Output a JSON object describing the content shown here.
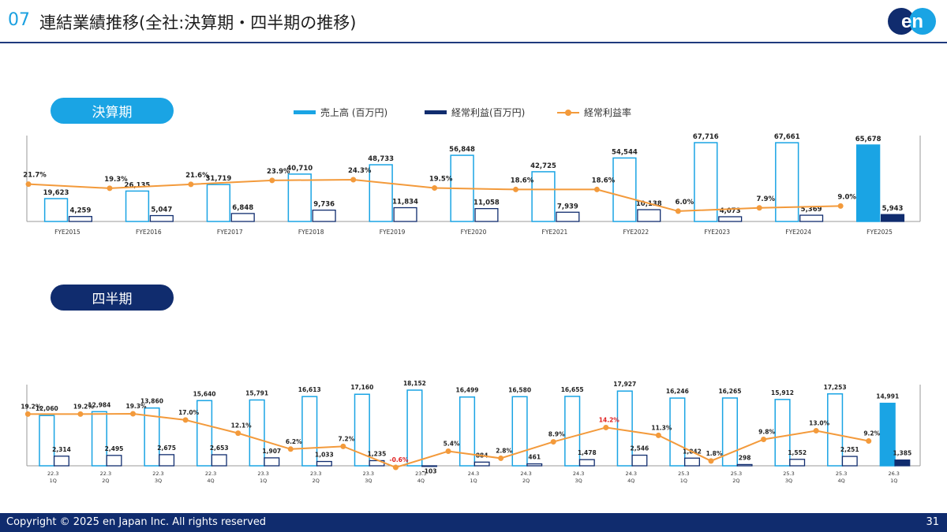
{
  "header": {
    "number": "07",
    "title": "連結業績推移(全社:決算期・四半期の推移)"
  },
  "logo": {
    "text": "en"
  },
  "sections": {
    "annual": "決算期",
    "quarterly": "四半期"
  },
  "legend": {
    "sales": "売上高 (百万円)",
    "ordinary_profit": "経常利益(百万円)",
    "margin": "経常利益率"
  },
  "colors": {
    "sales": "#1aa4e4",
    "profit": "#102c6e",
    "margin": "#f39a3b",
    "negative": "#e02020"
  },
  "chart_data": [
    {
      "type": "bar",
      "name": "決算期",
      "categories": [
        "FYE2015",
        "FYE2016",
        "FYE2017",
        "FYE2018",
        "FYE2019",
        "FYE2020",
        "FYE2021",
        "FYE2022",
        "FYE2023",
        "FYE2024",
        "FYE2025"
      ],
      "series": [
        {
          "name": "売上高 (百万円)",
          "values": [
            19623,
            26135,
            31719,
            40710,
            48733,
            56848,
            42725,
            54544,
            67716,
            67661,
            65678
          ]
        },
        {
          "name": "経常利益(百万円)",
          "values": [
            4259,
            5047,
            6848,
            9736,
            11834,
            11058,
            7939,
            10138,
            4073,
            5369,
            5943
          ]
        },
        {
          "name": "経常利益率",
          "values": [
            21.7,
            19.3,
            21.6,
            23.9,
            24.3,
            19.5,
            18.6,
            18.6,
            6.0,
            7.9,
            9.0
          ]
        }
      ],
      "sales_labels": [
        "19,623",
        "26,135",
        "31,719",
        "40,710",
        "48,733",
        "56,848",
        "42,725",
        "54,544",
        "67,716",
        "67,661",
        "65,678"
      ],
      "profit_labels": [
        "4,259",
        "5,047",
        "6,848",
        "9,736",
        "11,834",
        "11,058",
        "7,939",
        "10,138",
        "4,073",
        "5,369",
        "5,943"
      ],
      "margin_labels": [
        "21.7%",
        "19.3%",
        "21.6%",
        "23.9%",
        "24.3%",
        "19.5%",
        "18.6%",
        "18.6%",
        "6.0%",
        "7.9%",
        "9.0%"
      ],
      "highlight_last": true
    },
    {
      "type": "bar",
      "name": "四半期",
      "categories": [
        [
          "22.3",
          "1Q"
        ],
        [
          "22.3",
          "2Q"
        ],
        [
          "22.3",
          "3Q"
        ],
        [
          "22.3",
          "4Q"
        ],
        [
          "23.3",
          "1Q"
        ],
        [
          "23.3",
          "2Q"
        ],
        [
          "23.3",
          "3Q"
        ],
        [
          "23.3",
          "4Q"
        ],
        [
          "24.3",
          "1Q"
        ],
        [
          "24.3",
          "2Q"
        ],
        [
          "24.3",
          "3Q"
        ],
        [
          "24.3",
          "4Q"
        ],
        [
          "25.3",
          "1Q"
        ],
        [
          "25.3",
          "2Q"
        ],
        [
          "25.3",
          "3Q"
        ],
        [
          "25.3",
          "4Q"
        ],
        [
          "26.3",
          "1Q"
        ]
      ],
      "series": [
        {
          "name": "売上高 (百万円)",
          "values": [
            12060,
            12984,
            13860,
            15640,
            15791,
            16613,
            17160,
            18152,
            16499,
            16580,
            16655,
            17927,
            16246,
            16265,
            15912,
            17253,
            14991
          ]
        },
        {
          "name": "経常利益(百万円)",
          "values": [
            2314,
            2495,
            2675,
            2653,
            1907,
            1033,
            1235,
            -103,
            884,
            461,
            1478,
            2546,
            1842,
            298,
            1552,
            2251,
            1385
          ]
        },
        {
          "name": "経常利益率",
          "values": [
            19.2,
            19.2,
            19.3,
            17.0,
            12.1,
            6.2,
            7.2,
            -0.6,
            5.4,
            2.8,
            8.9,
            14.2,
            11.3,
            1.8,
            9.8,
            13.0,
            9.2
          ]
        }
      ],
      "sales_labels": [
        "12,060",
        "12,984",
        "13,860",
        "15,640",
        "15,791",
        "16,613",
        "17,160",
        "18,152",
        "16,499",
        "16,580",
        "16,655",
        "17,927",
        "16,246",
        "16,265",
        "15,912",
        "17,253",
        "14,991"
      ],
      "profit_labels": [
        "2,314",
        "2,495",
        "2,675",
        "2,653",
        "1,907",
        "1,033",
        "1,235",
        "-103",
        "884",
        "461",
        "1,478",
        "2,546",
        "1,842",
        "298",
        "1,552",
        "2,251",
        "1,385"
      ],
      "margin_labels": [
        "19.2%",
        "19.2%",
        "19.3%",
        "17.0%",
        "12.1%",
        "6.2%",
        "7.2%",
        "-0.6%",
        "5.4%",
        "2.8%",
        "8.9%",
        "14.2%",
        "11.3%",
        "1.8%",
        "9.8%",
        "13.0%",
        "9.2%"
      ],
      "margin_label_colors": [
        "",
        "",
        "",
        "",
        "",
        "",
        "",
        "#e02020",
        "",
        "",
        "",
        "#e02020",
        "",
        "",
        "",
        "",
        ""
      ],
      "highlight_last": true
    }
  ],
  "footer": {
    "copyright": "Copyright © 2025 en Japan Inc. All rights reserved",
    "page": "31"
  }
}
